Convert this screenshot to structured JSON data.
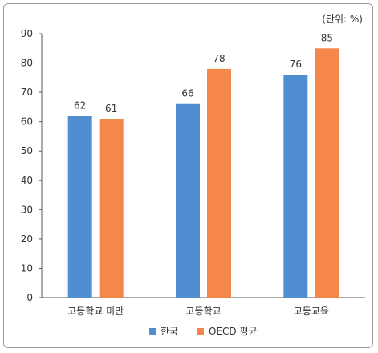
{
  "chart_data": {
    "type": "bar",
    "title": "",
    "unit_label": "(단위: %)",
    "xlabel": "",
    "ylabel": "",
    "ylim": [
      0,
      90
    ],
    "yticks": [
      0,
      10,
      20,
      30,
      40,
      50,
      60,
      70,
      80,
      90
    ],
    "grid": false,
    "legend_position": "bottom-center",
    "categories": [
      "고등학교 미만",
      "고등학교",
      "고등교육"
    ],
    "series": [
      {
        "name": "한국",
        "color": "#4f8fd1",
        "values": [
          62,
          66,
          76
        ]
      },
      {
        "name": "OECD 평균",
        "color": "#f5874a",
        "values": [
          61,
          78,
          85
        ]
      }
    ]
  }
}
